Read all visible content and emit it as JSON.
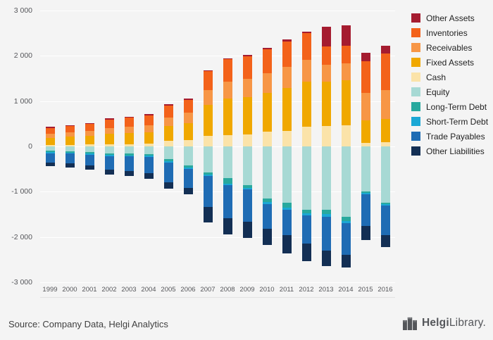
{
  "chart_data": {
    "type": "bar",
    "stacked": true,
    "title": "",
    "xlabel": "",
    "ylabel": "",
    "categories": [
      "1999",
      "2000",
      "2001",
      "2002",
      "2003",
      "2004",
      "2005",
      "2006",
      "2007",
      "2008",
      "2009",
      "2010",
      "2011",
      "2012",
      "2013",
      "2014",
      "2015",
      "2016"
    ],
    "series": [
      {
        "name": "Cash",
        "color": "#fbe3a9",
        "values": [
          30,
          35,
          40,
          45,
          50,
          55,
          120,
          140,
          230,
          250,
          260,
          330,
          340,
          430,
          450,
          460,
          80,
          100
        ]
      },
      {
        "name": "Fixed Assets",
        "color": "#f0a800",
        "values": [
          160,
          175,
          190,
          230,
          245,
          260,
          330,
          380,
          680,
          800,
          830,
          850,
          950,
          1000,
          980,
          1000,
          500,
          510
        ]
      },
      {
        "name": "Receivables",
        "color": "#f79646",
        "values": [
          90,
          100,
          110,
          130,
          140,
          150,
          190,
          220,
          330,
          380,
          400,
          430,
          460,
          480,
          380,
          380,
          600,
          640
        ]
      },
      {
        "name": "Inventories",
        "color": "#f3621a",
        "values": [
          130,
          140,
          160,
          190,
          200,
          215,
          260,
          290,
          420,
          490,
          500,
          530,
          570,
          600,
          390,
          380,
          700,
          800
        ]
      },
      {
        "name": "Other Assets",
        "color": "#a51c30",
        "values": [
          20,
          20,
          20,
          25,
          25,
          30,
          30,
          30,
          20,
          30,
          30,
          30,
          40,
          30,
          450,
          460,
          180,
          170
        ]
      },
      {
        "name": "Equity",
        "color": "#a7d9d4",
        "values": [
          -100,
          -110,
          -120,
          -150,
          -160,
          -170,
          -280,
          -420,
          -580,
          -700,
          -850,
          -1150,
          -1250,
          -1400,
          -1400,
          -1550,
          -1000,
          -1250
        ]
      },
      {
        "name": "Long-Term Debt",
        "color": "#28a99e",
        "values": [
          -25,
          -25,
          -30,
          -30,
          -35,
          -35,
          -40,
          -40,
          -40,
          -120,
          -60,
          -80,
          -100,
          -80,
          -90,
          -100,
          -30,
          -30
        ]
      },
      {
        "name": "Short-Term Debt",
        "color": "#1ba8d5",
        "values": [
          -25,
          -25,
          -30,
          -30,
          -30,
          -35,
          -40,
          -40,
          -30,
          -40,
          -40,
          -40,
          -50,
          -50,
          -60,
          -50,
          -30,
          -30
        ]
      },
      {
        "name": "Trade Payables",
        "color": "#1f6cb4",
        "values": [
          -200,
          -220,
          -240,
          -300,
          -320,
          -350,
          -440,
          -420,
          -690,
          -730,
          -720,
          -550,
          -560,
          -610,
          -750,
          -700,
          -700,
          -650
        ]
      },
      {
        "name": "Other Liabilities",
        "color": "#132f54",
        "values": [
          -80,
          -90,
          -100,
          -110,
          -115,
          -120,
          -130,
          -140,
          -340,
          -360,
          -350,
          -350,
          -400,
          -400,
          -350,
          -280,
          -300,
          -260
        ]
      }
    ],
    "legend_order": [
      "Other Assets",
      "Inventories",
      "Receivables",
      "Fixed Assets",
      "Cash",
      "Equity",
      "Long-Term Debt",
      "Short-Term Debt",
      "Trade Payables",
      "Other Liabilities"
    ],
    "legend_position": "right",
    "ylim": [
      -3000,
      3000
    ],
    "ytick_step": 1000,
    "ytick_labels": [
      "3 000",
      "2 000",
      "1 000",
      "0",
      "-1 000",
      "-2 000",
      "-3 000"
    ],
    "grid": true
  },
  "footer": {
    "source": "Source: Company Data, Helgi Analytics",
    "logo_bold": "Helgi",
    "logo_regular": "Library.",
    "logo_icon": "castle-icon"
  },
  "colors": {
    "background": "#f4f4f4",
    "gridline": "#ffffff",
    "axis_text": "#55565a",
    "legend_text": "#1f1f1f"
  }
}
